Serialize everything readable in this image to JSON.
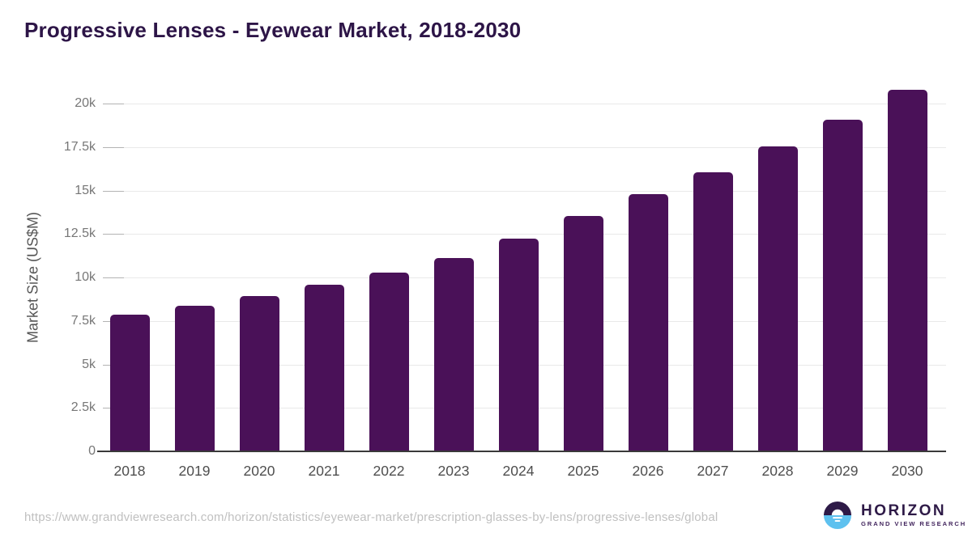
{
  "title": "Progressive Lenses - Eyewear Market, 2018-2030",
  "chart_data": {
    "type": "bar",
    "title": "Progressive Lenses - Eyewear Market, 2018-2030",
    "categories": [
      "2018",
      "2019",
      "2020",
      "2021",
      "2022",
      "2023",
      "2024",
      "2025",
      "2026",
      "2027",
      "2028",
      "2029",
      "2030"
    ],
    "values": [
      7850,
      8380,
      8940,
      9580,
      10300,
      11120,
      12240,
      13550,
      14780,
      16080,
      17550,
      19080,
      20820
    ],
    "xlabel": "",
    "ylabel": "Market Size (US$M)",
    "ylim": [
      0,
      21400
    ],
    "yticks": [
      {
        "value": 0,
        "label": "0"
      },
      {
        "value": 2500,
        "label": "2.5k"
      },
      {
        "value": 5000,
        "label": "5k"
      },
      {
        "value": 7500,
        "label": "7.5k"
      },
      {
        "value": 10000,
        "label": "10k"
      },
      {
        "value": 12500,
        "label": "12.5k"
      },
      {
        "value": 15000,
        "label": "15k"
      },
      {
        "value": 17500,
        "label": "17.5k"
      },
      {
        "value": 20000,
        "label": "20k"
      }
    ],
    "grid": true,
    "legend": "none",
    "bar_color": "#4a1158"
  },
  "colors": {
    "title": "#2d1547",
    "bar": "#4a1158",
    "gridline": "#e9e9e9",
    "tick": "#b3b3b3",
    "axis_line": "#3a3a3a",
    "logo_dark": "#2e1a47",
    "logo_blue": "#5ec1ef"
  },
  "footer": {
    "url": "https://www.grandviewresearch.com/horizon/statistics/eyewear-market/prescription-glasses-by-lens/progressive-lenses/global",
    "logo": {
      "brand": "HORIZON",
      "tagline": "GRAND VIEW RESEARCH"
    }
  }
}
